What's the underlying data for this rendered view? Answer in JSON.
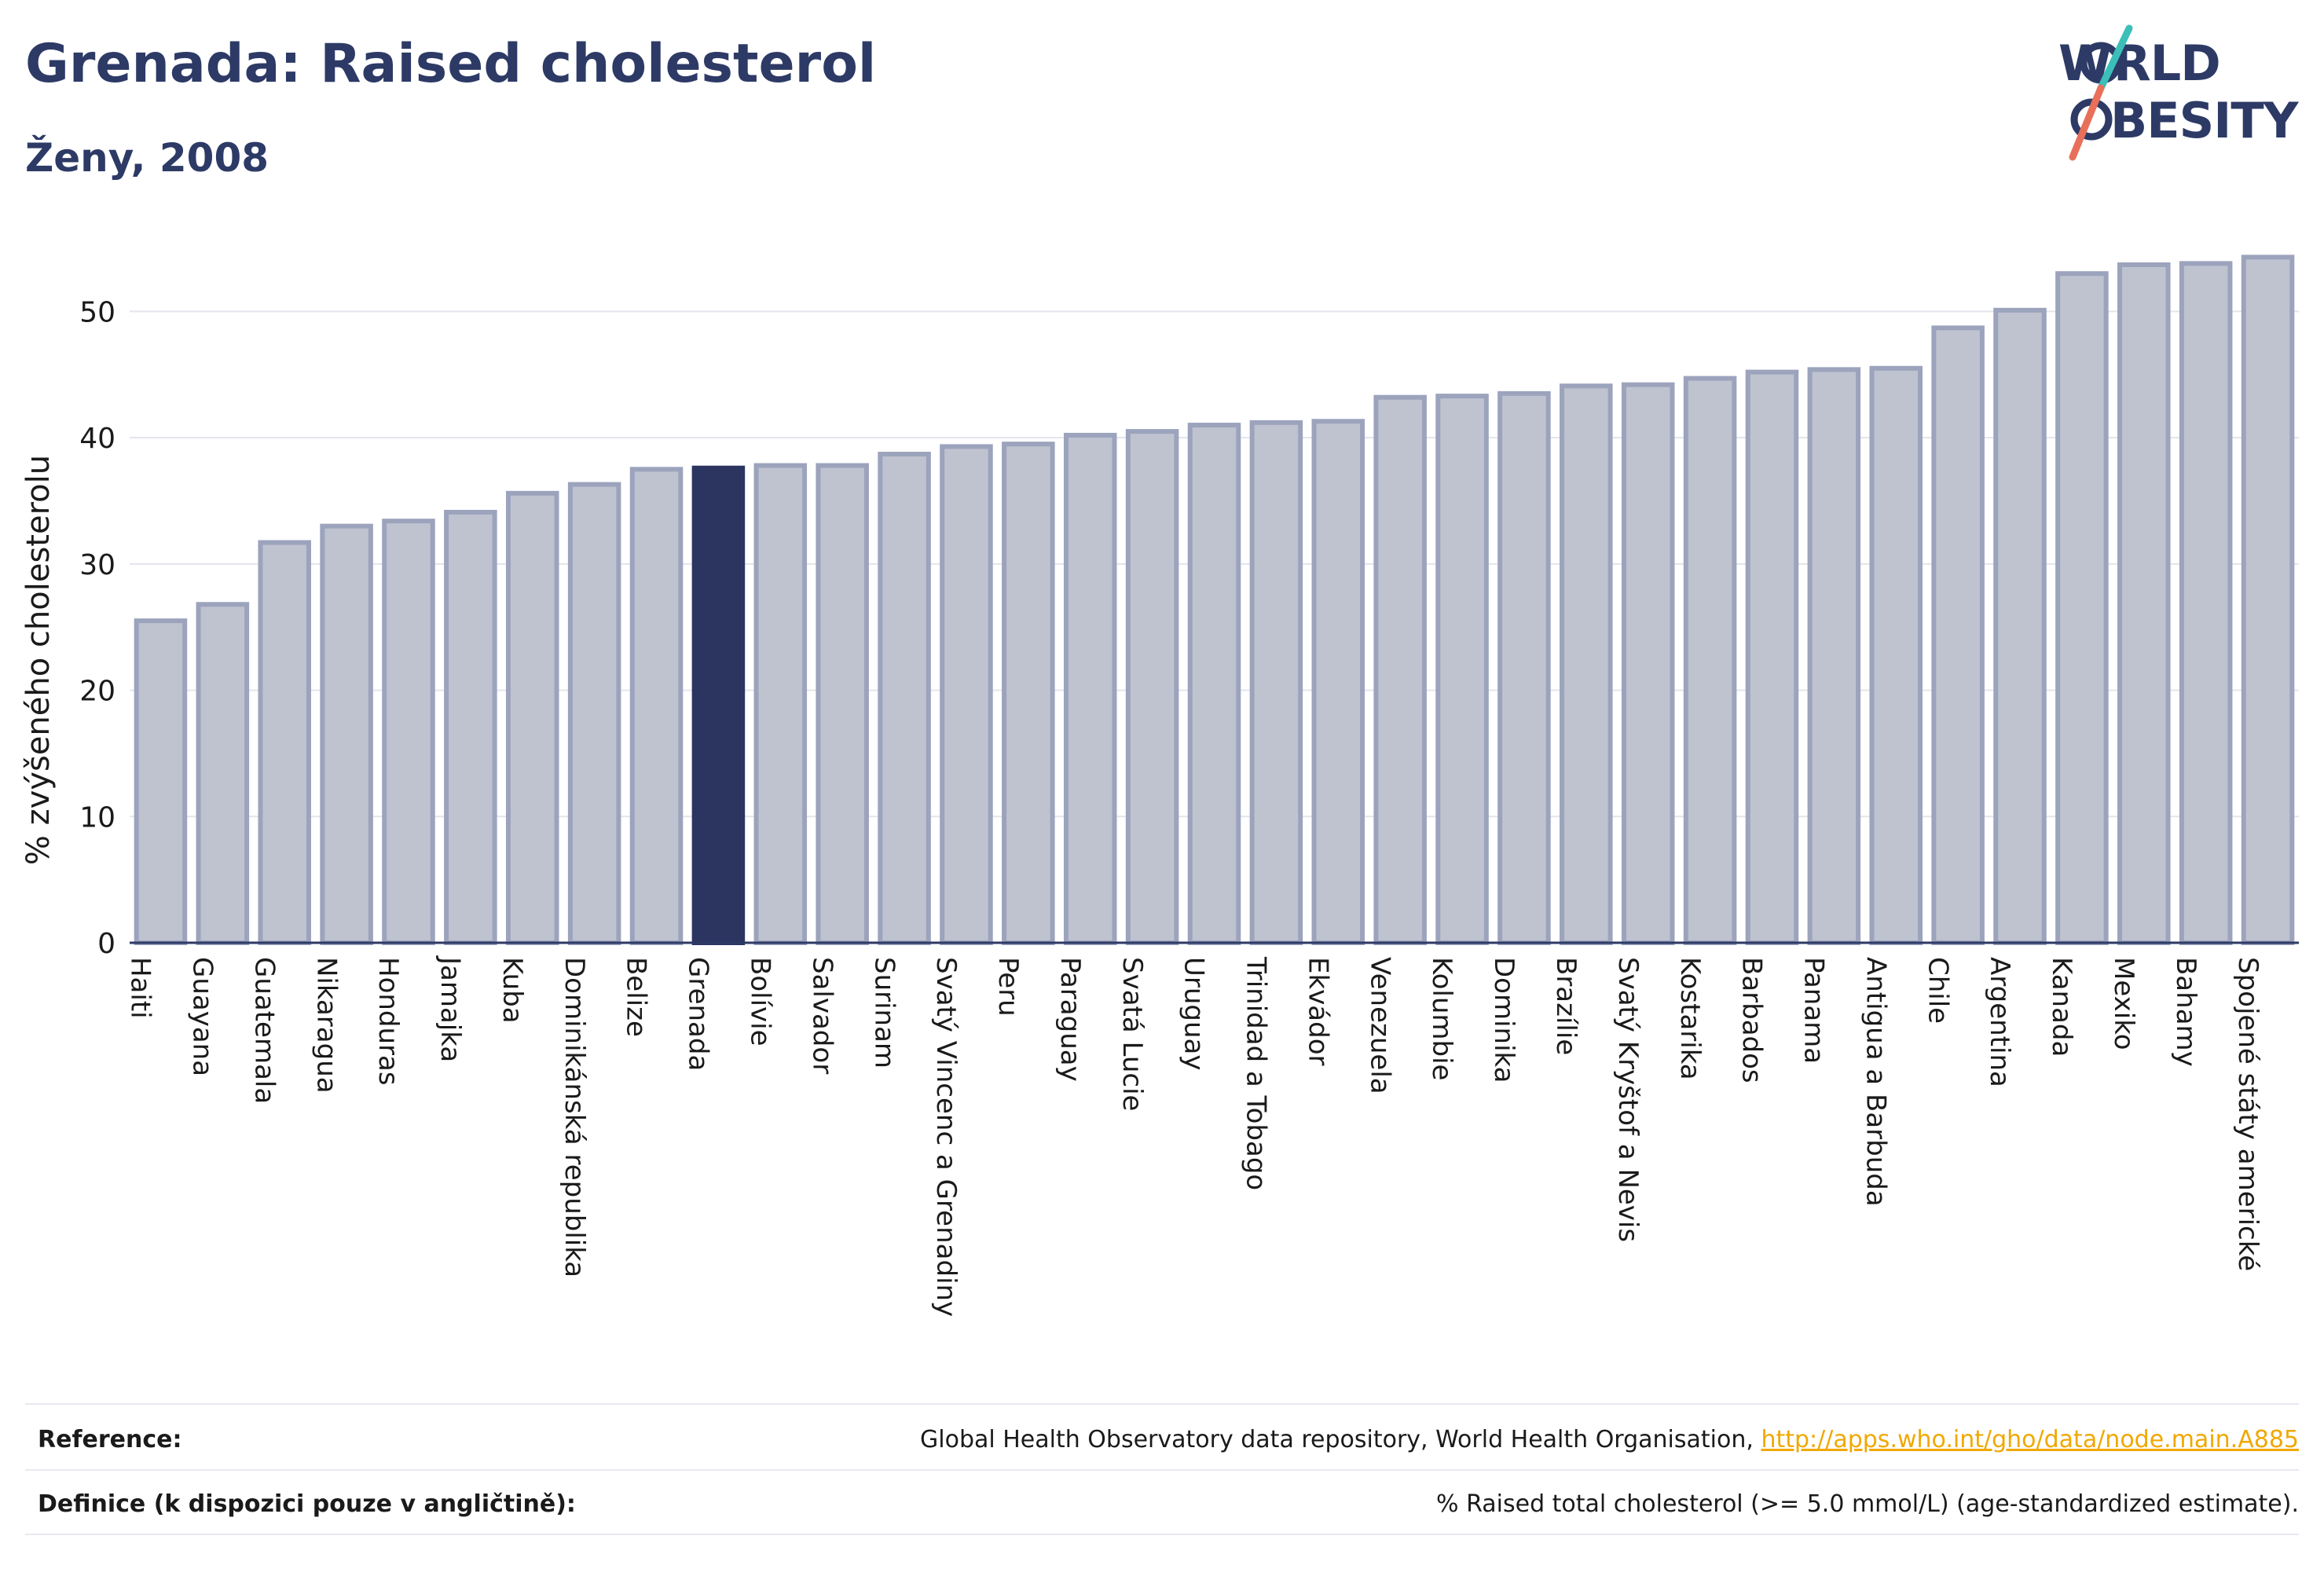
{
  "header": {
    "title": "Grenada: Raised cholesterol",
    "subtitle": "Ženy, 2008"
  },
  "logo": {
    "line1": "W RLD",
    "line2": "BESITY",
    "colors": {
      "text": "#2d3a66",
      "slash_top": "#3bbfb8",
      "slash_bottom": "#e8705a"
    }
  },
  "chart_data": {
    "type": "bar",
    "ylabel": "% zvýšeného cholesterolu",
    "xlabel": "",
    "ylim": [
      0,
      56
    ],
    "yticks": [
      0,
      10,
      20,
      30,
      40,
      50
    ],
    "grid": true,
    "highlight": "Grenada",
    "colors": {
      "bar": "#bfc3d0",
      "bar_edge": "#9ca3bc",
      "highlight": "#2b3560"
    },
    "categories": [
      "Haiti",
      "Guayana",
      "Guatemala",
      "Nikaragua",
      "Honduras",
      "Jamajka",
      "Kuba",
      "Dominikánská republika",
      "Belize",
      "Grenada",
      "Bolívie",
      "Salvador",
      "Surinam",
      "Svatý Vincenc a Grenadiny",
      "Peru",
      "Paraguay",
      "Svatá Lucie",
      "Uruguay",
      "Trinidad a Tobago",
      "Ekvádor",
      "Venezuela",
      "Kolumbie",
      "Dominika",
      "Brazílie",
      "Svatý Kryštof a Nevis",
      "Kostarika",
      "Barbados",
      "Panama",
      "Antigua a Barbuda",
      "Chile",
      "Argentina",
      "Kanada",
      "Mexiko",
      "Bahamy",
      "Spojené státy americké"
    ],
    "values": [
      25.5,
      26.8,
      31.7,
      33.0,
      33.4,
      34.1,
      35.6,
      36.3,
      37.5,
      37.6,
      37.8,
      37.8,
      38.7,
      39.3,
      39.5,
      40.2,
      40.5,
      41.0,
      41.2,
      41.3,
      43.2,
      43.3,
      43.5,
      44.1,
      44.2,
      44.7,
      45.2,
      45.4,
      45.5,
      48.7,
      50.1,
      53.0,
      53.7,
      53.8,
      54.3
    ]
  },
  "footer": {
    "reference_label": "Reference:",
    "reference_text": "Global Health Observatory data repository, World Health Organisation, ",
    "reference_link": "http://apps.who.int/gho/data/node.main.A885",
    "definition_label": "Definice (k dispozici pouze v angličtině):",
    "definition_text": "% Raised total cholesterol (>= 5.0 mmol/L) (age-standardized estimate)."
  }
}
